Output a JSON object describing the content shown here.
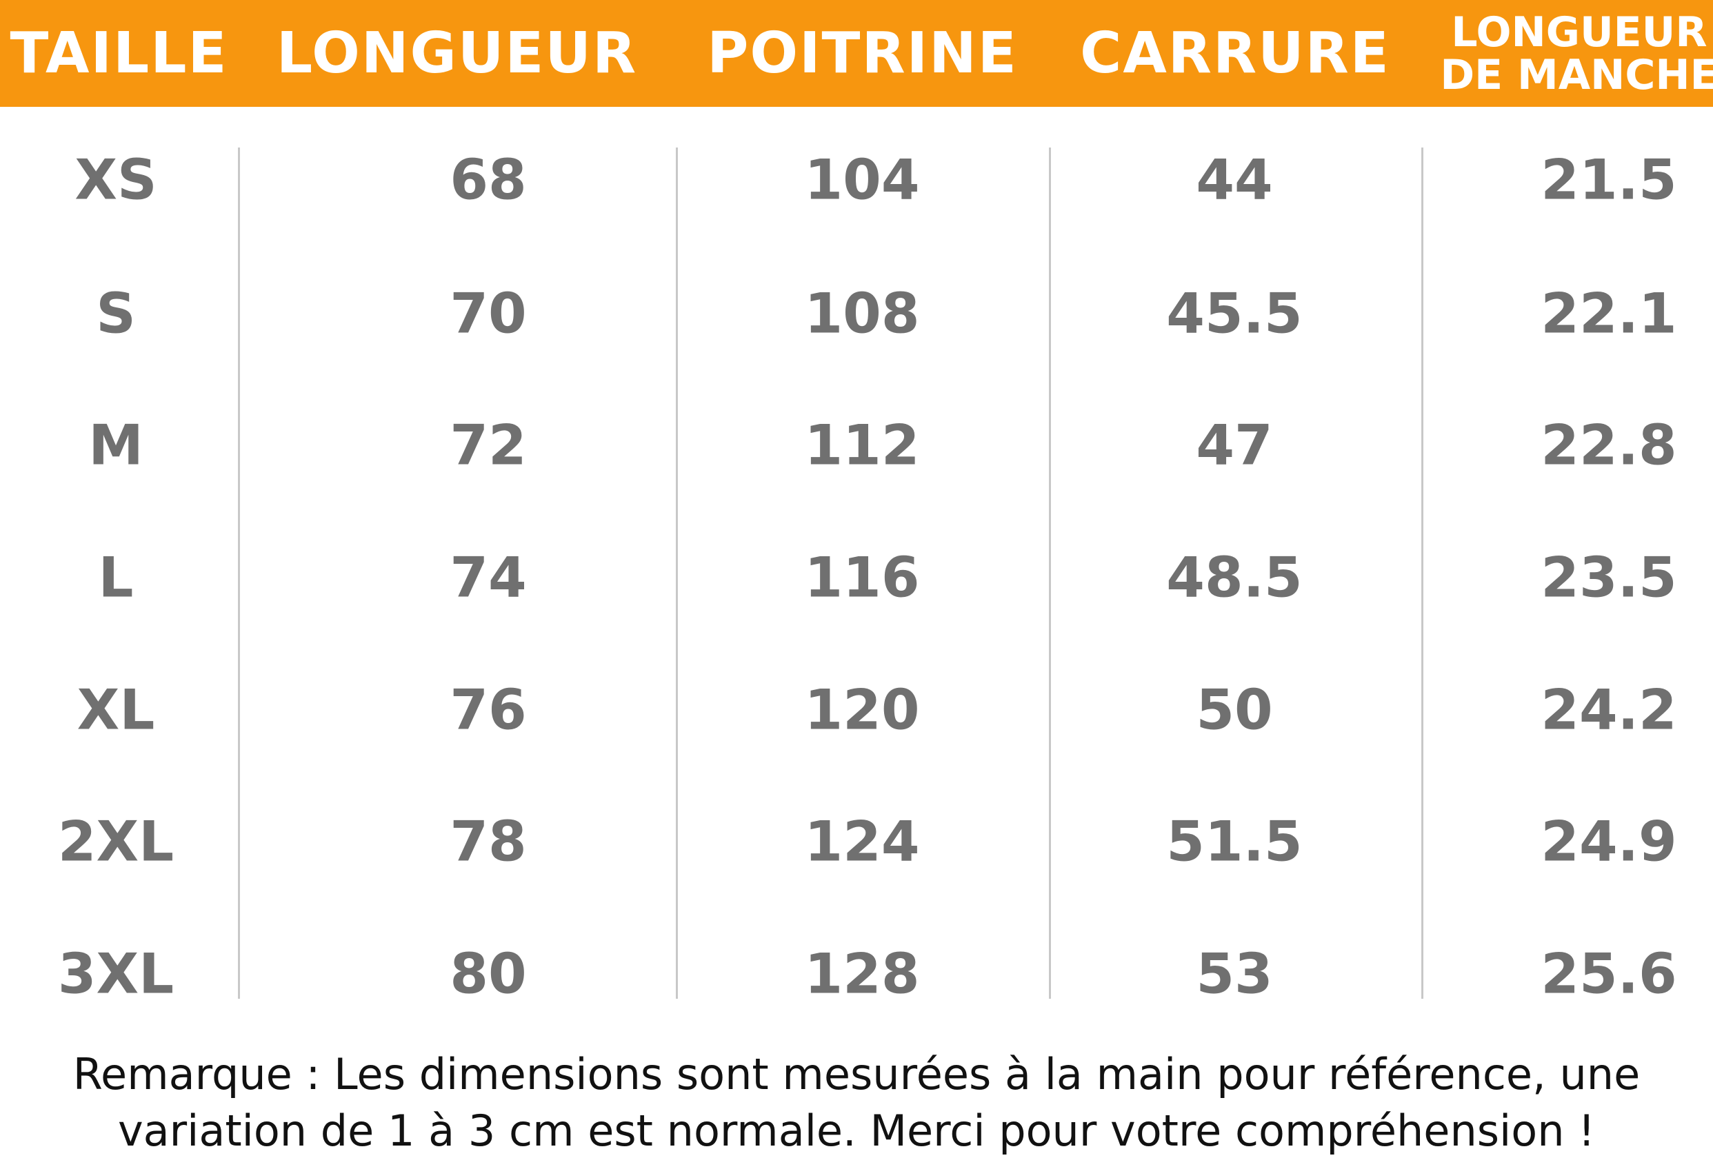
{
  "table": {
    "header": [
      "TAILLE",
      "LONGUEUR",
      "POITRINE",
      "CARRURE",
      "LONGUEUR DE MANCHE"
    ],
    "rows": [
      [
        "XS",
        68,
        104,
        44,
        21.5
      ],
      [
        "S",
        70,
        108,
        45.5,
        22.1
      ],
      [
        "M",
        72,
        112,
        47,
        22.8
      ],
      [
        "L",
        74,
        116,
        48.5,
        23.5
      ],
      [
        "XL",
        76,
        120,
        50,
        24.2
      ],
      [
        "2XL",
        78,
        124,
        51.5,
        24.9
      ],
      [
        "3XL",
        80,
        128,
        53,
        25.6
      ]
    ]
  },
  "note": "Remarque : Les dimensions sont mesurées à la main pour référence, une variation de 1 à 3 cm est normale. Merci pour votre compréhension !"
}
